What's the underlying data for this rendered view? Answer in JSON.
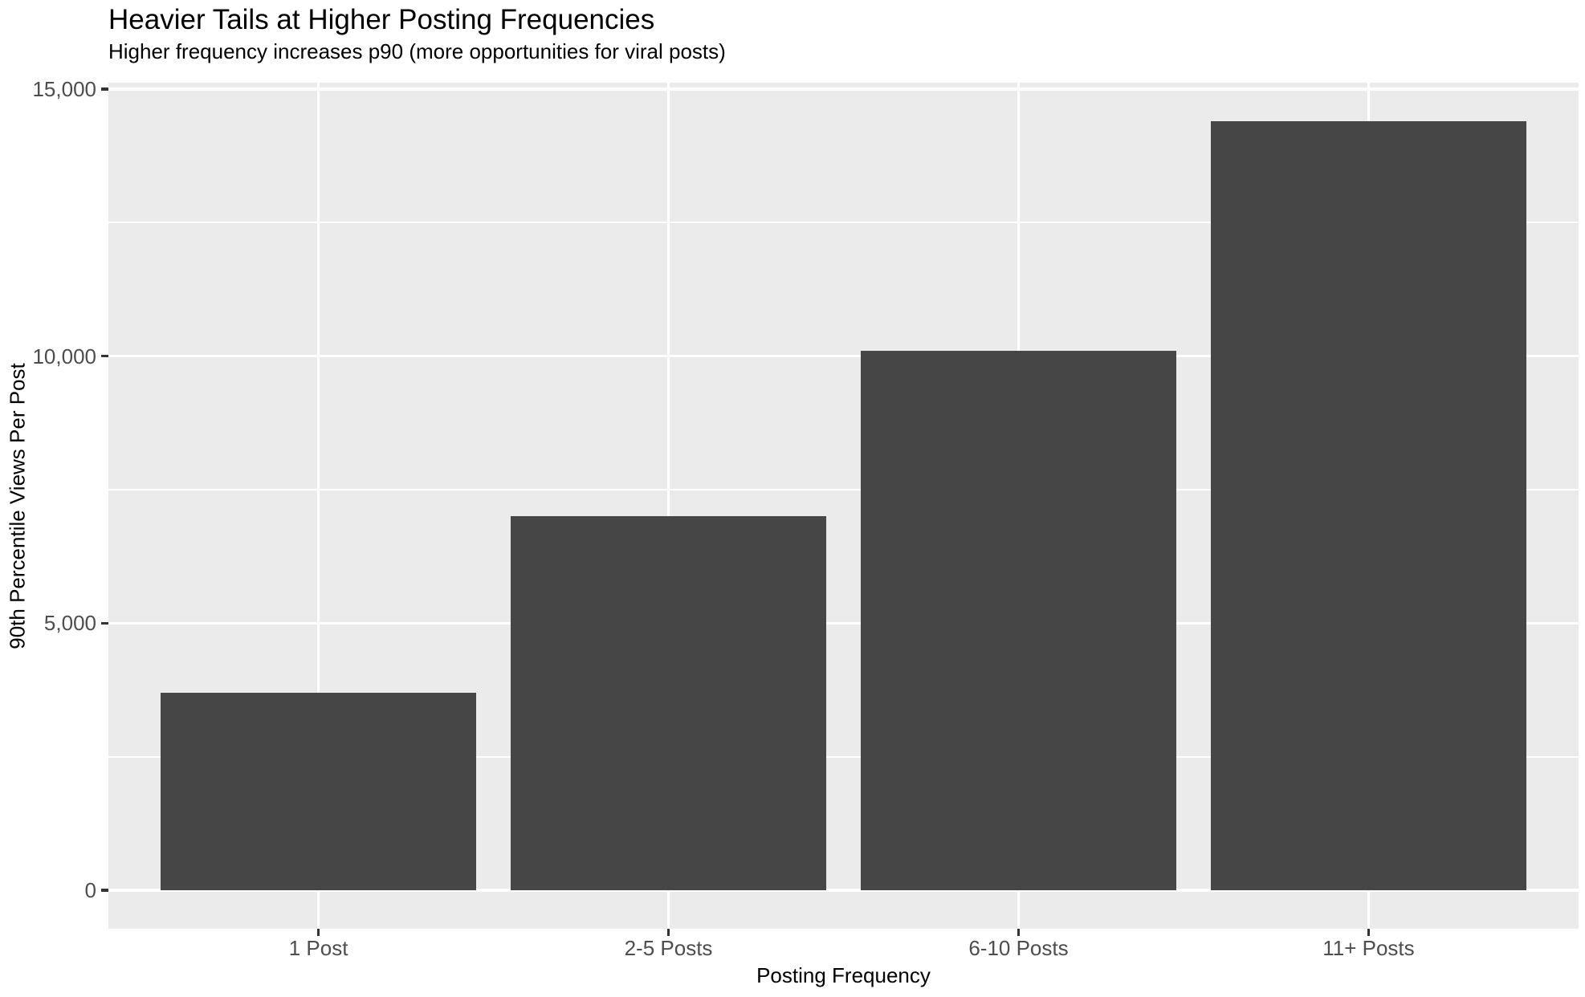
{
  "chart_data": {
    "type": "bar",
    "title": "Heavier Tails at Higher Posting Frequencies",
    "subtitle": "Higher frequency increases p90 (more opportunities for viral posts)",
    "xlabel": "Posting Frequency",
    "ylabel": "90th Percentile Views Per Post",
    "categories": [
      "1 Post",
      "2-5 Posts",
      "6-10 Posts",
      "11+ Posts"
    ],
    "values": [
      3700,
      7000,
      10100,
      14400
    ],
    "y_ticks": [
      {
        "value": 0,
        "label": "0"
      },
      {
        "value": 5000,
        "label": "5,000"
      },
      {
        "value": 10000,
        "label": "10,000"
      },
      {
        "value": 15000,
        "label": "15,000"
      }
    ],
    "y_minor_gridlines": [
      2500,
      7500,
      12500
    ],
    "ylim": [
      -720,
      15120
    ],
    "grid": true,
    "legend": "none",
    "bar_width_fraction": 0.9,
    "colors": {
      "bar_fill": "#464646",
      "panel_background": "#EBEBEB",
      "gridline": "#FFFFFF",
      "tick_label": "#4D4D4D",
      "axis_title": "#000000",
      "title": "#000000",
      "tick_mark": "#333333",
      "figure_background": "#FFFFFF"
    }
  }
}
